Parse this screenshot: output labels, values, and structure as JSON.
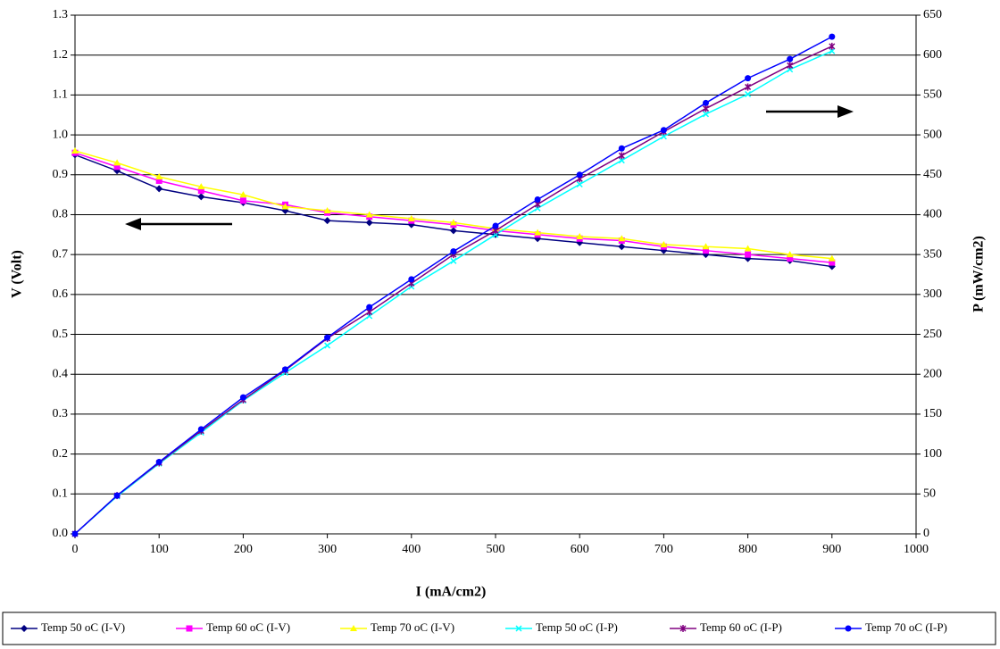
{
  "chart_data": {
    "type": "line",
    "xlabel": "I (mA/cm2)",
    "ylabel": "V (Volt)",
    "y2label": "P (mW/cm2)",
    "x": [
      0,
      50,
      100,
      150,
      200,
      250,
      300,
      350,
      400,
      450,
      500,
      550,
      600,
      650,
      700,
      750,
      800,
      850,
      900
    ],
    "xlim": [
      0,
      1000
    ],
    "xticks": [
      0,
      100,
      200,
      300,
      400,
      500,
      600,
      700,
      800,
      900,
      1000
    ],
    "ylim": [
      0,
      1.3
    ],
    "yticks": [
      {
        "value": 0,
        "label": "0.0"
      },
      {
        "value": 0.1,
        "label": "0.1"
      },
      {
        "value": 0.2,
        "label": "0.2"
      },
      {
        "value": 0.3,
        "label": "0.3"
      },
      {
        "value": 0.4,
        "label": "0.4"
      },
      {
        "value": 0.5,
        "label": "0.5"
      },
      {
        "value": 0.6,
        "label": "0.6"
      },
      {
        "value": 0.7,
        "label": "0.7"
      },
      {
        "value": 0.8,
        "label": "0.8"
      },
      {
        "value": 0.9,
        "label": "0.9"
      },
      {
        "value": 1.0,
        "label": "1.0"
      },
      {
        "value": 1.1,
        "label": "1.1"
      },
      {
        "value": 1.2,
        "label": "1.2"
      },
      {
        "value": 1.3,
        "label": "1.3"
      }
    ],
    "y2lim": [
      0,
      650
    ],
    "y2ticks": [
      0,
      50,
      100,
      150,
      200,
      250,
      300,
      350,
      400,
      450,
      500,
      550,
      600,
      650
    ],
    "grid": true,
    "series": [
      {
        "name": "Temp 50 oC (I-V)",
        "color": "#000080",
        "marker": "diamond",
        "values": [
          0.95,
          0.91,
          0.865,
          0.845,
          0.83,
          0.81,
          0.785,
          0.78,
          0.775,
          0.76,
          0.75,
          0.74,
          0.73,
          0.72,
          0.71,
          0.7,
          0.69,
          0.685,
          0.67
        ]
      },
      {
        "name": "Temp 60 oC (I-V)",
        "color": "#ff00ff",
        "marker": "square",
        "values": [
          0.955,
          0.92,
          0.885,
          0.86,
          0.835,
          0.825,
          0.805,
          0.795,
          0.785,
          0.775,
          0.76,
          0.75,
          0.74,
          0.735,
          0.72,
          0.71,
          0.7,
          0.69,
          0.68
        ]
      },
      {
        "name": "Temp 70 oC (I-V)",
        "color": "#ffff00",
        "marker": "triangle",
        "values": [
          0.96,
          0.93,
          0.895,
          0.87,
          0.85,
          0.82,
          0.81,
          0.8,
          0.79,
          0.78,
          0.765,
          0.755,
          0.745,
          0.74,
          0.725,
          0.72,
          0.715,
          0.7,
          0.69
        ]
      },
      {
        "name": "Temp 50 oC (I-P)",
        "color": "#00ffff",
        "marker": "x",
        "axis": "y2",
        "values": [
          0,
          47,
          88,
          127,
          167,
          202,
          236,
          273,
          310,
          342,
          375,
          408,
          438,
          468,
          498,
          526,
          551,
          582,
          605
        ]
      },
      {
        "name": "Temp 60 oC (I-P)",
        "color": "#800080",
        "marker": "star",
        "axis": "y2",
        "values": [
          0,
          48,
          89,
          129,
          168,
          205,
          245,
          278,
          314,
          350,
          380,
          413,
          445,
          474,
          504,
          533,
          560,
          587,
          611
        ]
      },
      {
        "name": "Temp 70 oC (I-P)",
        "color": "#0000ff",
        "marker": "circle",
        "axis": "y2",
        "values": [
          0,
          48,
          90,
          131,
          171,
          206,
          246,
          284,
          319,
          354,
          386,
          419,
          450,
          483,
          506,
          540,
          571,
          595,
          623
        ]
      }
    ]
  }
}
